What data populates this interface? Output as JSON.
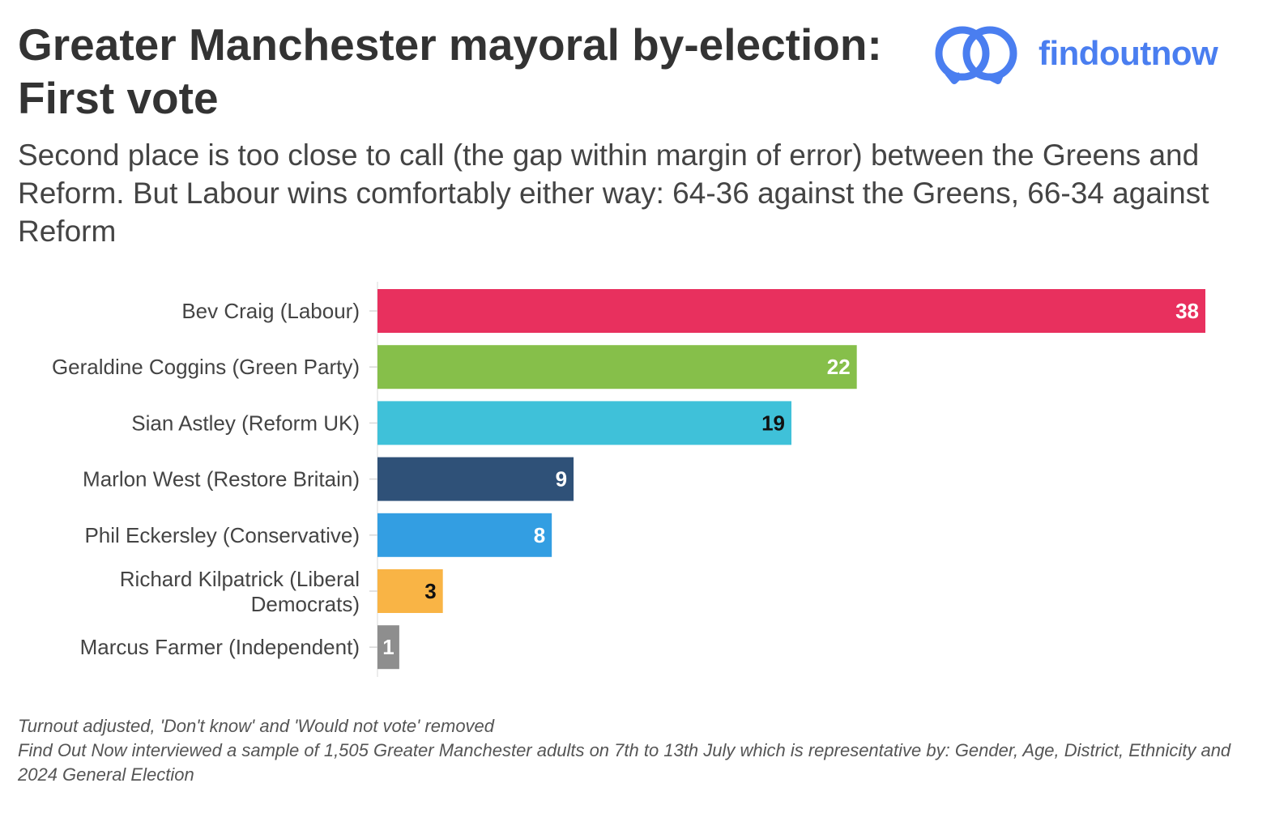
{
  "header": {
    "title": "Greater Manchester mayoral by-election: First vote",
    "subtitle": "Second place is too close to call (the gap within margin of error) between the Greens and Reform. But Labour wins comfortably either way: 64-36 against the Greens, 66-34 against Reform"
  },
  "logo": {
    "text": "findoutnow",
    "color": "#4a7ef0",
    "icon": "linked-rings-icon"
  },
  "chart_data": {
    "type": "bar",
    "orientation": "horizontal",
    "categories": [
      "Bev Craig (Labour)",
      "Geraldine Coggins (Green Party)",
      "Sian Astley (Reform UK)",
      "Marlon West (Restore Britain)",
      "Phil Eckersley (Conservative)",
      "Richard Kilpatrick (Liberal Democrats)",
      "Marcus Farmer (Independent)"
    ],
    "values": [
      38,
      22,
      19,
      9,
      8,
      3,
      1
    ],
    "value_labels": [
      "38",
      "22",
      "19",
      "9",
      "8",
      "3",
      "1"
    ],
    "colors": [
      "#e8305e",
      "#86bf4a",
      "#3fc1d9",
      "#2f5178",
      "#339ee2",
      "#f9b445",
      "#8e8e8e"
    ],
    "label_colors": [
      "#ffffff",
      "#ffffff",
      "#111111",
      "#ffffff",
      "#ffffff",
      "#111111",
      "#ffffff"
    ],
    "xlim": [
      0,
      38
    ],
    "grid": false,
    "legend": "none"
  },
  "footnotes": {
    "line1": "Turnout adjusted, 'Don't know' and 'Would not vote' removed",
    "line2": "Find Out Now interviewed a sample of 1,505 Greater Manchester adults on 7th to 13th July which is representative by: Gender, Age, District, Ethnicity and 2024 General Election"
  }
}
